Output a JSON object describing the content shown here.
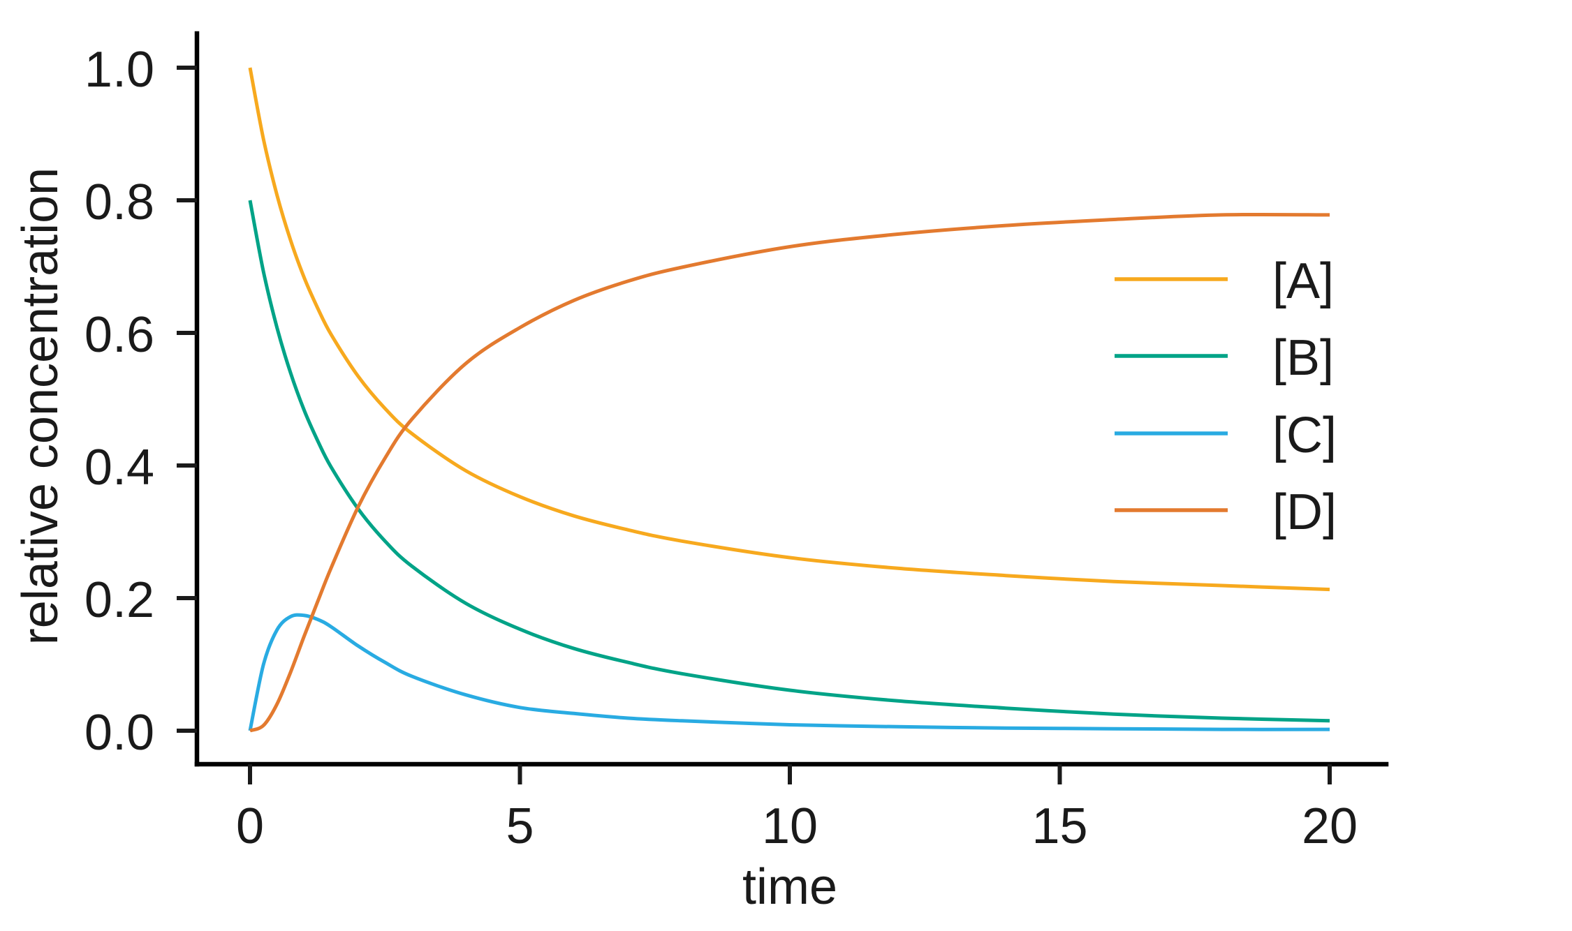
{
  "chart_data": {
    "type": "line",
    "title": "",
    "xlabel": "time",
    "ylabel": "relative concentration",
    "xlim": [
      -1,
      21
    ],
    "ylim": [
      -0.05,
      1.05
    ],
    "xticks": [
      0,
      5,
      10,
      15,
      20
    ],
    "xtick_labels": [
      "0",
      "5",
      "10",
      "15",
      "20"
    ],
    "yticks": [
      0.0,
      0.2,
      0.4,
      0.6,
      0.8,
      1.0
    ],
    "ytick_labels": [
      "0.0",
      "0.2",
      "0.4",
      "0.6",
      "0.8",
      "1.0"
    ],
    "grid": false,
    "legend_position": "center right",
    "x": [
      0,
      0.25,
      0.5,
      0.75,
      1,
      1.25,
      1.5,
      2,
      2.5,
      3,
      4,
      5,
      6,
      7,
      8,
      10,
      12,
      14,
      16,
      18,
      20
    ],
    "series": [
      {
        "name": "[A]",
        "color": "#F7A91E",
        "values": [
          1.0,
          0.892,
          0.808,
          0.74,
          0.684,
          0.638,
          0.598,
          0.535,
          0.486,
          0.448,
          0.392,
          0.353,
          0.324,
          0.303,
          0.286,
          0.261,
          0.245,
          0.234,
          0.225,
          0.219,
          0.213
        ]
      },
      {
        "name": "[B]",
        "color": "#00A387",
        "values": [
          0.8,
          0.692,
          0.608,
          0.54,
          0.484,
          0.438,
          0.398,
          0.335,
          0.286,
          0.248,
          0.192,
          0.153,
          0.124,
          0.103,
          0.086,
          0.061,
          0.045,
          0.034,
          0.025,
          0.019,
          0.015
        ]
      },
      {
        "name": "[C]",
        "color": "#29ABE2",
        "values": [
          0.0,
          0.1,
          0.152,
          0.172,
          0.174,
          0.168,
          0.157,
          0.128,
          0.103,
          0.082,
          0.054,
          0.035,
          0.026,
          0.019,
          0.015,
          0.009,
          0.006,
          0.004,
          0.003,
          0.002,
          0.002
        ]
      },
      {
        "name": "[D]",
        "color": "#E37A2F",
        "values": [
          0.0,
          0.008,
          0.04,
          0.088,
          0.142,
          0.194,
          0.245,
          0.337,
          0.411,
          0.47,
          0.554,
          0.608,
          0.649,
          0.678,
          0.699,
          0.73,
          0.749,
          0.762,
          0.771,
          0.778,
          0.778
        ]
      }
    ]
  },
  "legend": {
    "items": [
      {
        "label": "[A]",
        "color": "#F7A91E"
      },
      {
        "label": "[B]",
        "color": "#00A387"
      },
      {
        "label": "[C]",
        "color": "#29ABE2"
      },
      {
        "label": "[D]",
        "color": "#E37A2F"
      }
    ]
  },
  "axes": {
    "x_label": "time",
    "y_label": "relative concentration"
  }
}
